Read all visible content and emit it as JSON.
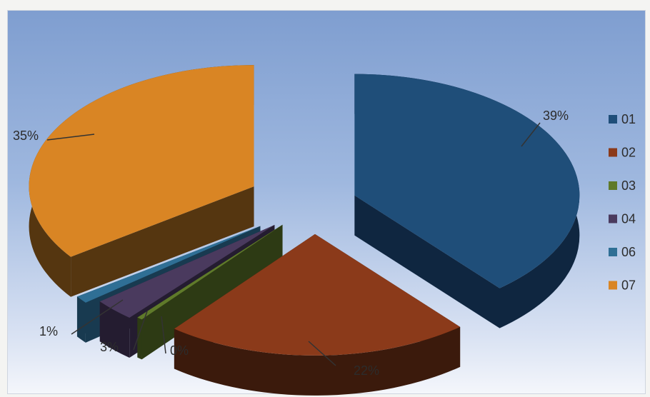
{
  "chart_data": {
    "type": "pie",
    "style": "3d-exploded",
    "legend_position": "right",
    "slices": [
      {
        "label": "01",
        "percent_label": "39%",
        "value": 39,
        "color": "#1f4e79",
        "side_color": "#0f2640"
      },
      {
        "label": "02",
        "percent_label": "22%",
        "value": 22,
        "color": "#8b3a1a",
        "side_color": "#3b1a0c"
      },
      {
        "label": "03",
        "percent_label": "0%",
        "value": 0.4,
        "color": "#5f7a2a",
        "side_color": "#2d3a14"
      },
      {
        "label": "04",
        "percent_label": "3%",
        "value": 3,
        "color": "#4a3a5e",
        "side_color": "#241c30"
      },
      {
        "label": "06",
        "percent_label": "1%",
        "value": 1,
        "color": "#2f6f95",
        "side_color": "#183a50"
      },
      {
        "label": "07",
        "percent_label": "35%",
        "value": 35,
        "color": "#d98524",
        "side_color": "#553610"
      }
    ]
  }
}
